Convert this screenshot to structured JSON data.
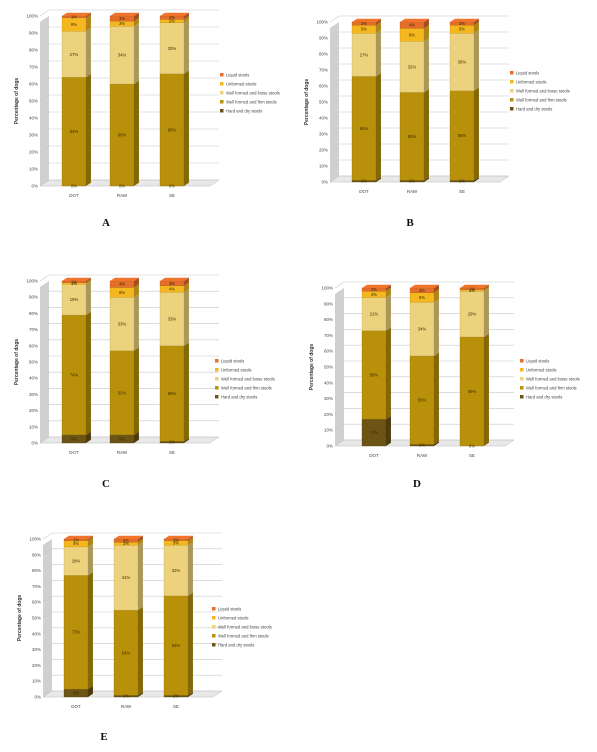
{
  "colors": {
    "hard_dry": "#6b5414",
    "firm": "#b8900a",
    "loose": "#ecd27c",
    "unformed": "#f4b81e",
    "liquid": "#e46e2a",
    "wall": "#d0d0d0",
    "grid": "#c8c8c8"
  },
  "legend": [
    {
      "key": "liquid",
      "label": "Liquid stools"
    },
    {
      "key": "unformed",
      "label": "Unformed stools"
    },
    {
      "key": "loose",
      "label": "Well formed and loose stools"
    },
    {
      "key": "firm",
      "label": "Well formed and firm stools"
    },
    {
      "key": "hard_dry",
      "label": "Hard and dry stools"
    }
  ],
  "chart_data": [
    {
      "type": "bar",
      "panel_label": "A",
      "ylabel": "Percentage of dogs",
      "yticks": [
        "0%",
        "10%",
        "20%",
        "30%",
        "40%",
        "50%",
        "60%",
        "70%",
        "80%",
        "90%",
        "100%"
      ],
      "ylim": [
        0,
        100
      ],
      "categories": [
        "DOT",
        "RAW",
        "SE"
      ],
      "series": [
        {
          "key": "hard_dry",
          "values": [
            0,
            0,
            0
          ],
          "labels": [
            "0%",
            "0%",
            "0%"
          ]
        },
        {
          "key": "firm",
          "values": [
            64,
            60,
            66
          ],
          "labels": [
            "64%",
            "60%",
            "66%"
          ]
        },
        {
          "key": "loose",
          "values": [
            27,
            34,
            30
          ],
          "labels": [
            "27%",
            "34%",
            "30%"
          ]
        },
        {
          "key": "unformed",
          "values": [
            8,
            3,
            2
          ],
          "labels": [
            "8%",
            "3%",
            "2%"
          ]
        },
        {
          "key": "liquid",
          "values": [
            1,
            3,
            2
          ],
          "labels": [
            "1%",
            "3%",
            "2%"
          ]
        }
      ]
    },
    {
      "type": "bar",
      "panel_label": "B",
      "ylabel": "Percentage of dogs",
      "yticks": [
        "0%",
        "10%",
        "20%",
        "30%",
        "40%",
        "50%",
        "60%",
        "70%",
        "80%",
        "90%",
        "100%"
      ],
      "ylim": [
        0,
        100
      ],
      "categories": [
        "DOT",
        "RAW",
        "SE"
      ],
      "series": [
        {
          "key": "hard_dry",
          "values": [
            1,
            1,
            1
          ],
          "labels": [
            "1%",
            "1%",
            "1%"
          ]
        },
        {
          "key": "firm",
          "values": [
            65,
            55,
            56
          ],
          "labels": [
            "65%",
            "55%",
            "56%"
          ]
        },
        {
          "key": "loose",
          "values": [
            27,
            32,
            36
          ],
          "labels": [
            "27%",
            "32%",
            "36%"
          ]
        },
        {
          "key": "unformed",
          "values": [
            5,
            8,
            5
          ],
          "labels": [
            "5%",
            "8%",
            "5%"
          ]
        },
        {
          "key": "liquid",
          "values": [
            2,
            4,
            2
          ],
          "labels": [
            "2%",
            "4%",
            "2%"
          ]
        }
      ]
    },
    {
      "type": "bar",
      "panel_label": "C",
      "ylabel": "Percentage of dogs",
      "yticks": [
        "0%",
        "10%",
        "20%",
        "30%",
        "40%",
        "50%",
        "60%",
        "70%",
        "80%",
        "90%",
        "100%"
      ],
      "ylim": [
        0,
        100
      ],
      "categories": [
        "DOT",
        "RAW",
        "SE"
      ],
      "series": [
        {
          "key": "hard_dry",
          "values": [
            5,
            5,
            1
          ],
          "labels": [
            "5%",
            "5%",
            "1%"
          ]
        },
        {
          "key": "firm",
          "values": [
            74,
            52,
            59
          ],
          "labels": [
            "74%",
            "52%",
            "59%"
          ]
        },
        {
          "key": "loose",
          "values": [
            19,
            33,
            33
          ],
          "labels": [
            "19%",
            "33%",
            "33%"
          ]
        },
        {
          "key": "unformed",
          "values": [
            1,
            6,
            4
          ],
          "labels": [
            "1%",
            "6%",
            "4%"
          ]
        },
        {
          "key": "liquid",
          "values": [
            1,
            4,
            3
          ],
          "labels": [
            "1%",
            "4%",
            "3%"
          ]
        }
      ]
    },
    {
      "type": "bar",
      "panel_label": "D",
      "ylabel": "Percentage of dogs",
      "yticks": [
        "0%",
        "10%",
        "20%",
        "30%",
        "40%",
        "50%",
        "60%",
        "70%",
        "80%",
        "90%",
        "100%"
      ],
      "ylim": [
        0,
        100
      ],
      "categories": [
        "DOT",
        "RAW",
        "SE"
      ],
      "series": [
        {
          "key": "hard_dry",
          "values": [
            17,
            1,
            0
          ],
          "labels": [
            "17%",
            "1%",
            "0%"
          ]
        },
        {
          "key": "firm",
          "values": [
            56,
            56,
            69
          ],
          "labels": [
            "56%",
            "56%",
            "69%"
          ]
        },
        {
          "key": "loose",
          "values": [
            21,
            34,
            29
          ],
          "labels": [
            "21%",
            "34%",
            "29%"
          ]
        },
        {
          "key": "unformed",
          "values": [
            4,
            6,
            1
          ],
          "labels": [
            "4%",
            "6%",
            "1%"
          ]
        },
        {
          "key": "liquid",
          "values": [
            2,
            3,
            1
          ],
          "labels": [
            "2%",
            "3%",
            "1%"
          ]
        }
      ]
    },
    {
      "type": "bar",
      "panel_label": "E",
      "ylabel": "Percentage of dogs",
      "yticks": [
        "0%",
        "10%",
        "20%",
        "30%",
        "40%",
        "50%",
        "60%",
        "70%",
        "80%",
        "90%",
        "100%"
      ],
      "ylim": [
        0,
        100
      ],
      "categories": [
        "DOT",
        "RAW",
        "SE"
      ],
      "series": [
        {
          "key": "hard_dry",
          "values": [
            5,
            1,
            1
          ],
          "labels": [
            "5%",
            "1%",
            "1%"
          ]
        },
        {
          "key": "firm",
          "values": [
            72,
            54,
            63
          ],
          "labels": [
            "72%",
            "54%",
            "63%"
          ]
        },
        {
          "key": "loose",
          "values": [
            18,
            41,
            32
          ],
          "labels": [
            "18%",
            "41%",
            "32%"
          ]
        },
        {
          "key": "unformed",
          "values": [
            4,
            2,
            3
          ],
          "labels": [
            "4%",
            "2%",
            "3%"
          ]
        },
        {
          "key": "liquid",
          "values": [
            1,
            2,
            1
          ],
          "labels": [
            "1%",
            "2%",
            "1%"
          ]
        }
      ]
    }
  ]
}
